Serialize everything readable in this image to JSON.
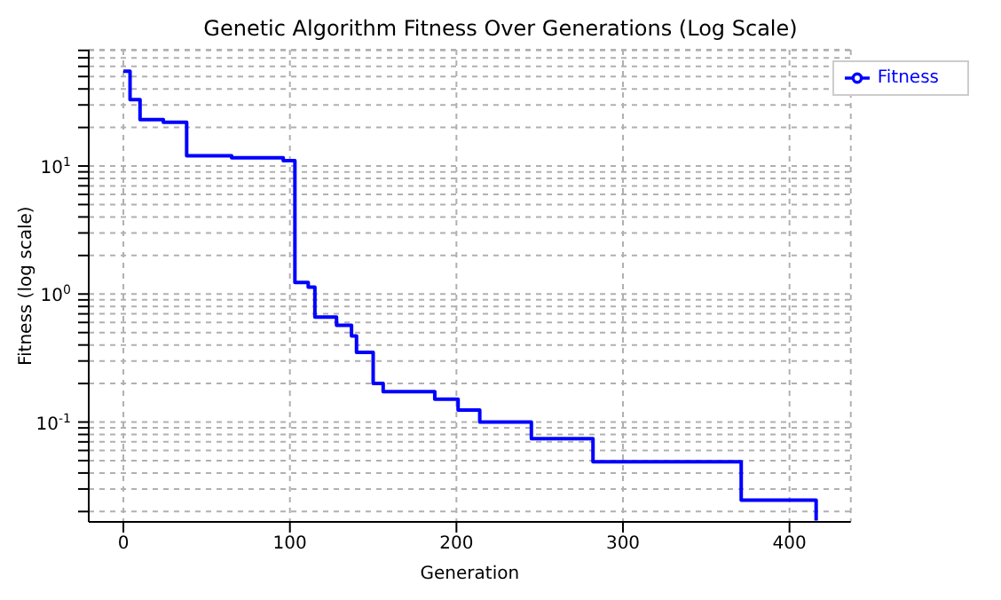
{
  "chart_data": {
    "type": "step",
    "title": "Genetic Algorithm Fitness Over Generations (Log Scale)",
    "xlabel": "Generation",
    "ylabel": "Fitness (log scale)",
    "x": [
      0,
      4,
      10,
      24,
      38,
      65,
      96,
      103,
      111,
      115,
      128,
      137,
      140,
      150,
      156,
      187,
      201,
      214,
      245,
      282,
      371,
      416
    ],
    "series": [
      {
        "name": "Fitness",
        "color": "#0000ff",
        "values": [
          55,
          33,
          23,
          22,
          12,
          11.6,
          11,
          1.23,
          1.13,
          0.66,
          0.57,
          0.47,
          0.35,
          0.2,
          0.173,
          0.151,
          0.124,
          0.1,
          0.074,
          0.049,
          0.0245,
          0.017
        ]
      }
    ],
    "xlim": [
      -20.8,
      436.8
    ],
    "xticks": [
      0,
      100,
      200,
      300,
      400
    ],
    "ylim": [
      0.0166,
      81
    ],
    "yticks": [
      {
        "value": 0.02,
        "label": null
      },
      {
        "value": 0.03,
        "label": null
      },
      {
        "value": 0.04,
        "label": null
      },
      {
        "value": 0.05,
        "label": null
      },
      {
        "value": 0.06,
        "label": null
      },
      {
        "value": 0.07,
        "label": null
      },
      {
        "value": 0.08,
        "label": null
      },
      {
        "value": 0.09,
        "label": null
      },
      {
        "value": 0.1,
        "label": "10$^{-1}$"
      },
      {
        "value": 0.2,
        "label": null
      },
      {
        "value": 0.3,
        "label": null
      },
      {
        "value": 0.4,
        "label": null
      },
      {
        "value": 0.5,
        "label": null
      },
      {
        "value": 0.6,
        "label": null
      },
      {
        "value": 0.7,
        "label": null
      },
      {
        "value": 0.8,
        "label": null
      },
      {
        "value": 0.9,
        "label": null
      },
      {
        "value": 1,
        "label": "10$^{0}$"
      },
      {
        "value": 2,
        "label": null
      },
      {
        "value": 3,
        "label": null
      },
      {
        "value": 4,
        "label": null
      },
      {
        "value": 5,
        "label": null
      },
      {
        "value": 6,
        "label": null
      },
      {
        "value": 7,
        "label": null
      },
      {
        "value": 8,
        "label": null
      },
      {
        "value": 9,
        "label": null
      },
      {
        "value": 10,
        "label": "10$^{1}$"
      },
      {
        "value": 20,
        "label": null
      },
      {
        "value": 30,
        "label": null
      },
      {
        "value": 40,
        "label": null
      },
      {
        "value": 50,
        "label": null
      },
      {
        "value": 60,
        "label": null
      },
      {
        "value": 70,
        "label": null
      },
      {
        "value": 80,
        "label": null
      }
    ],
    "log": "y",
    "grid": true,
    "legend": "top right",
    "marker": "none",
    "line_style": "solid"
  }
}
